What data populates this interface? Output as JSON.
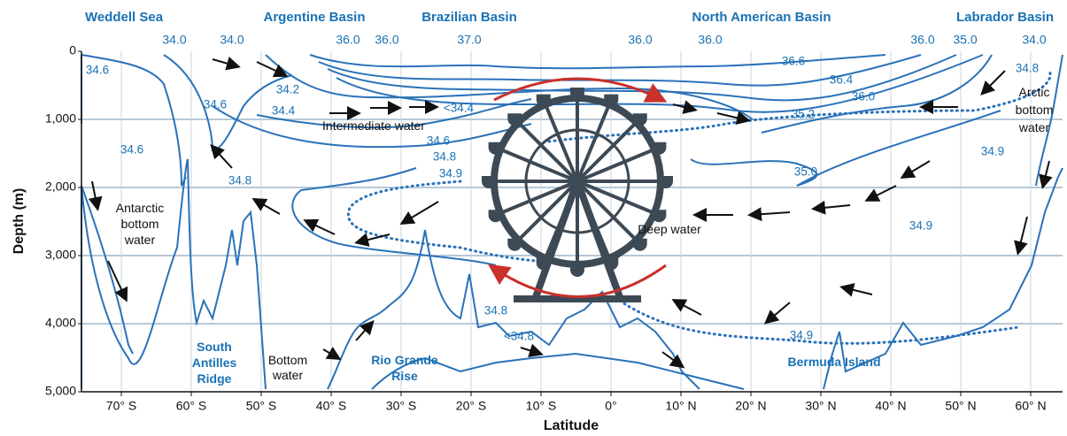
{
  "regions": [
    "Weddell Sea",
    "Argentine Basin",
    "Brazilian Basin",
    "North American Basin",
    "Labrador Basin"
  ],
  "top_labels": [
    "34.0",
    "34.0",
    "36.0",
    "36.0",
    "37.0",
    "36.0",
    "36.0",
    "36.0",
    "35.0",
    "34.0"
  ],
  "y_axis": {
    "title": "Depth (m)",
    "ticks": [
      "0",
      "1,000",
      "2,000",
      "3,000",
      "4,000",
      "5,000"
    ]
  },
  "x_axis": {
    "title": "Latitude",
    "ticks": [
      "70° S",
      "60° S",
      "50° S",
      "40° S",
      "30° S",
      "20° S",
      "10° S",
      "0°",
      "10° N",
      "20° N",
      "30° N",
      "40° N",
      "50° N",
      "60° N"
    ]
  },
  "salinity_labels": [
    "34.6",
    "34.2",
    "34.6",
    "34.4",
    "<34.4",
    "34.6",
    "34.6",
    "34.8",
    "34.9",
    "34.8",
    "36.6",
    "36.4",
    "36.0",
    "35.2",
    "34.8",
    "34.9",
    "35.0",
    "34.9",
    "34.8",
    "<34.8",
    "34.9"
  ],
  "water_masses": [
    {
      "lines": [
        "Intermediate water"
      ]
    },
    {
      "lines": [
        "Arctic",
        "bottom",
        "water"
      ]
    },
    {
      "lines": [
        "Antarctic",
        "bottom",
        "water"
      ]
    },
    {
      "lines": [
        "Deep water"
      ]
    },
    {
      "lines": [
        "Bottom",
        "water"
      ]
    }
  ],
  "features": [
    {
      "lines": [
        "South",
        "Antilles",
        "Ridge"
      ]
    },
    {
      "lines": [
        "Rio Grande",
        "Rise"
      ]
    },
    {
      "lines": [
        "Bermuda Island"
      ]
    }
  ]
}
